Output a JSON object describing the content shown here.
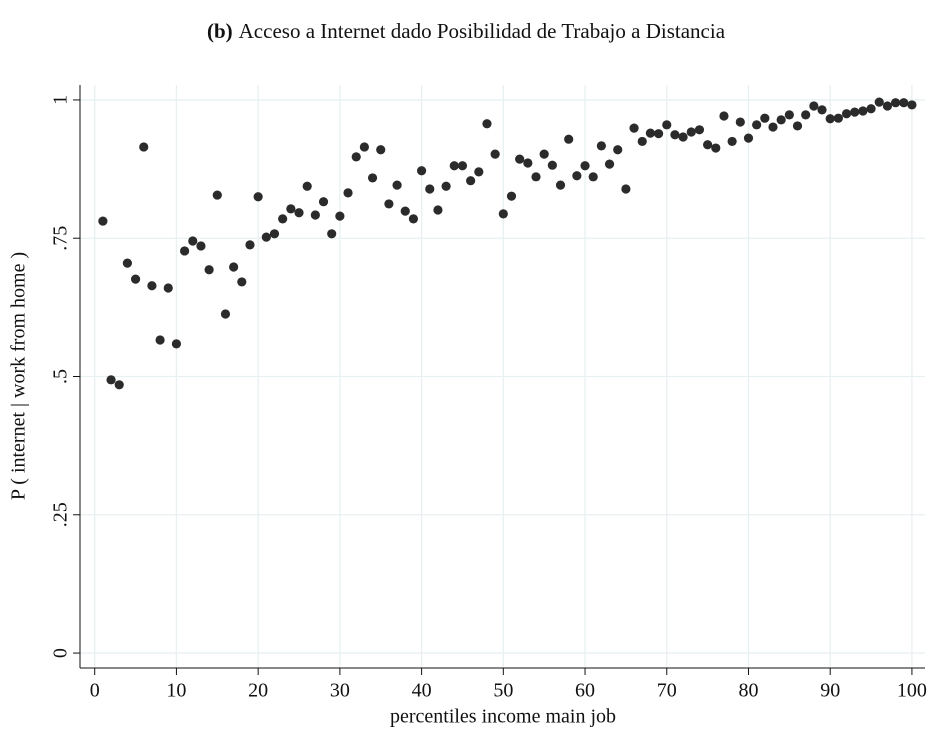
{
  "chart_data": {
    "type": "scatter",
    "panel_label": "(b)",
    "title": "Acceso a Internet dado Posibilidad de Trabajo a Distancia",
    "x_label": "percentiles income main job",
    "y_label": "P ( internet | work from home )",
    "color": "#2b2b2b",
    "grid": true,
    "xlim": [
      -1.8,
      101.6
    ],
    "ylim": [
      -0.027,
      1.027
    ],
    "xticks": [
      0,
      10,
      20,
      30,
      40,
      50,
      60,
      70,
      80,
      90,
      100
    ],
    "yticks": [
      0,
      {
        "value": 0.25,
        "label": ".25"
      },
      {
        "value": 0.5,
        "label": ".5"
      },
      {
        "value": 0.75,
        "label": ".75"
      },
      1
    ],
    "x": [
      1,
      2,
      3,
      4,
      5,
      6,
      7,
      8,
      9,
      10,
      11,
      12,
      13,
      14,
      15,
      16,
      17,
      18,
      19,
      20,
      21,
      22,
      23,
      24,
      25,
      26,
      27,
      28,
      29,
      30,
      31,
      32,
      33,
      34,
      35,
      36,
      37,
      38,
      39,
      40,
      41,
      42,
      43,
      44,
      45,
      46,
      47,
      48,
      49,
      50,
      51,
      52,
      53,
      54,
      55,
      56,
      57,
      58,
      59,
      60,
      61,
      62,
      63,
      64,
      65,
      66,
      67,
      68,
      69,
      70,
      71,
      72,
      73,
      74,
      75,
      76,
      77,
      78,
      79,
      80,
      81,
      82,
      83,
      84,
      85,
      86,
      87,
      88,
      89,
      90,
      91,
      92,
      93,
      94,
      95,
      96,
      97,
      98,
      99,
      100
    ],
    "values": [
      0.781,
      0.494,
      0.485,
      0.705,
      0.676,
      0.915,
      0.664,
      0.566,
      0.66,
      0.559,
      0.727,
      0.745,
      0.736,
      0.693,
      0.828,
      0.613,
      0.698,
      0.671,
      0.738,
      0.825,
      0.752,
      0.758,
      0.785,
      0.803,
      0.796,
      0.844,
      0.792,
      0.816,
      0.758,
      0.79,
      0.832,
      0.897,
      0.915,
      0.859,
      0.91,
      0.812,
      0.846,
      0.799,
      0.785,
      0.872,
      0.839,
      0.801,
      0.844,
      0.881,
      0.881,
      0.854,
      0.87,
      0.957,
      0.902,
      0.794,
      0.826,
      0.893,
      0.886,
      0.861,
      0.902,
      0.882,
      0.846,
      0.929,
      0.863,
      0.881,
      0.861,
      0.917,
      0.884,
      0.91,
      0.839,
      0.949,
      0.925,
      0.94,
      0.939,
      0.955,
      0.937,
      0.933,
      0.942,
      0.946,
      0.919,
      0.913,
      0.971,
      0.925,
      0.96,
      0.931,
      0.955,
      0.967,
      0.951,
      0.964,
      0.973,
      0.953,
      0.973,
      0.989,
      0.982,
      0.966,
      0.967,
      0.975,
      0.978,
      0.98,
      0.984,
      0.996,
      0.989,
      0.995,
      0.995,
      0.991
    ]
  }
}
